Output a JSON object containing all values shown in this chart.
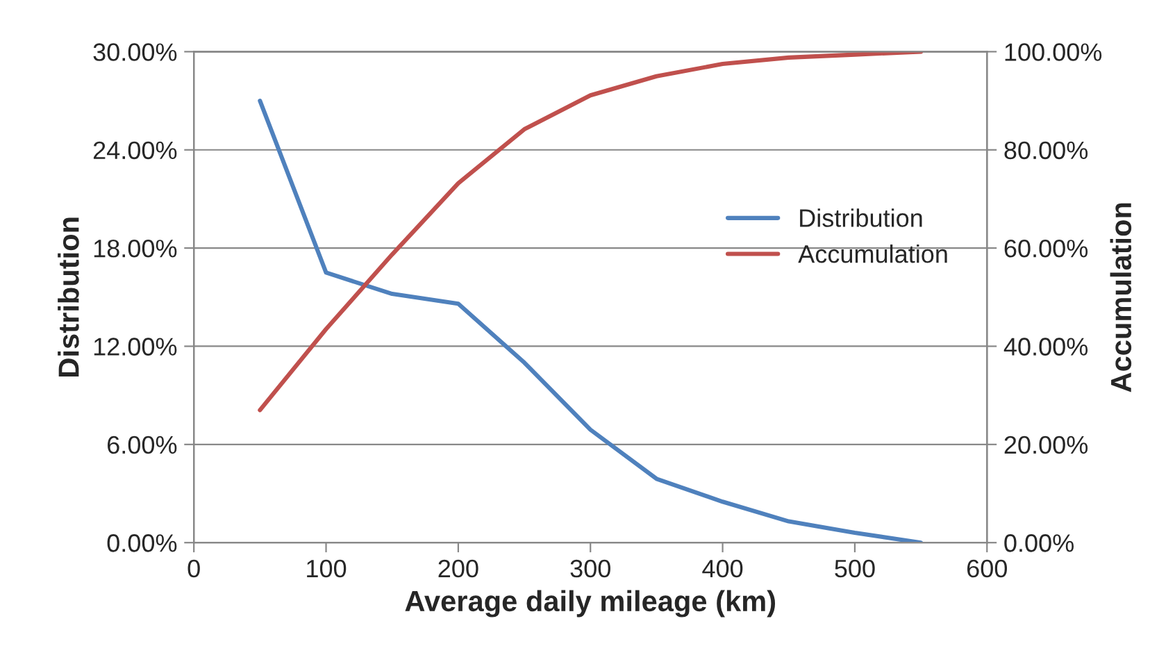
{
  "chart_data": {
    "type": "line",
    "xlabel": "Average daily mileage (km)",
    "ylabel": "Distribution",
    "y2label": "Accumulation",
    "x": [
      50,
      100,
      150,
      200,
      250,
      300,
      350,
      400,
      450,
      500,
      550
    ],
    "series": [
      {
        "name": "Distribution",
        "color": "#4f81bd",
        "values": [
          27.0,
          16.5,
          15.2,
          14.6,
          11.0,
          6.9,
          3.9,
          2.5,
          1.3,
          0.6,
          0.0
        ]
      },
      {
        "name": "Accumulation",
        "color": "#c0504d",
        "axis": "y2",
        "values": [
          27,
          43.5,
          58.7,
          73.2,
          84.2,
          91.1,
          95,
          97.5,
          98.8,
          99.4,
          100
        ]
      }
    ],
    "xlim": [
      0,
      600
    ],
    "xticks": [
      0,
      100,
      200,
      300,
      400,
      500,
      600
    ],
    "ylim": [
      0,
      30
    ],
    "yticks": [
      {
        "value": 0,
        "label": "0.00%"
      },
      {
        "value": 6,
        "label": "6.00%"
      },
      {
        "value": 12,
        "label": "12.00%"
      },
      {
        "value": 18,
        "label": "18.00%"
      },
      {
        "value": 24,
        "label": "24.00%"
      },
      {
        "value": 30,
        "label": "30.00%"
      }
    ],
    "y2lim": [
      0,
      100
    ],
    "y2ticks": [
      {
        "value": 0,
        "label": "0.00%"
      },
      {
        "value": 20,
        "label": "20.00%"
      },
      {
        "value": 40,
        "label": "40.00%"
      },
      {
        "value": 60,
        "label": "60.00%"
      },
      {
        "value": 80,
        "label": "80.00%"
      },
      {
        "value": 100,
        "label": "100.00%"
      }
    ],
    "grid": "y",
    "legend": "center right",
    "marker": "none",
    "line_style": "solid"
  }
}
